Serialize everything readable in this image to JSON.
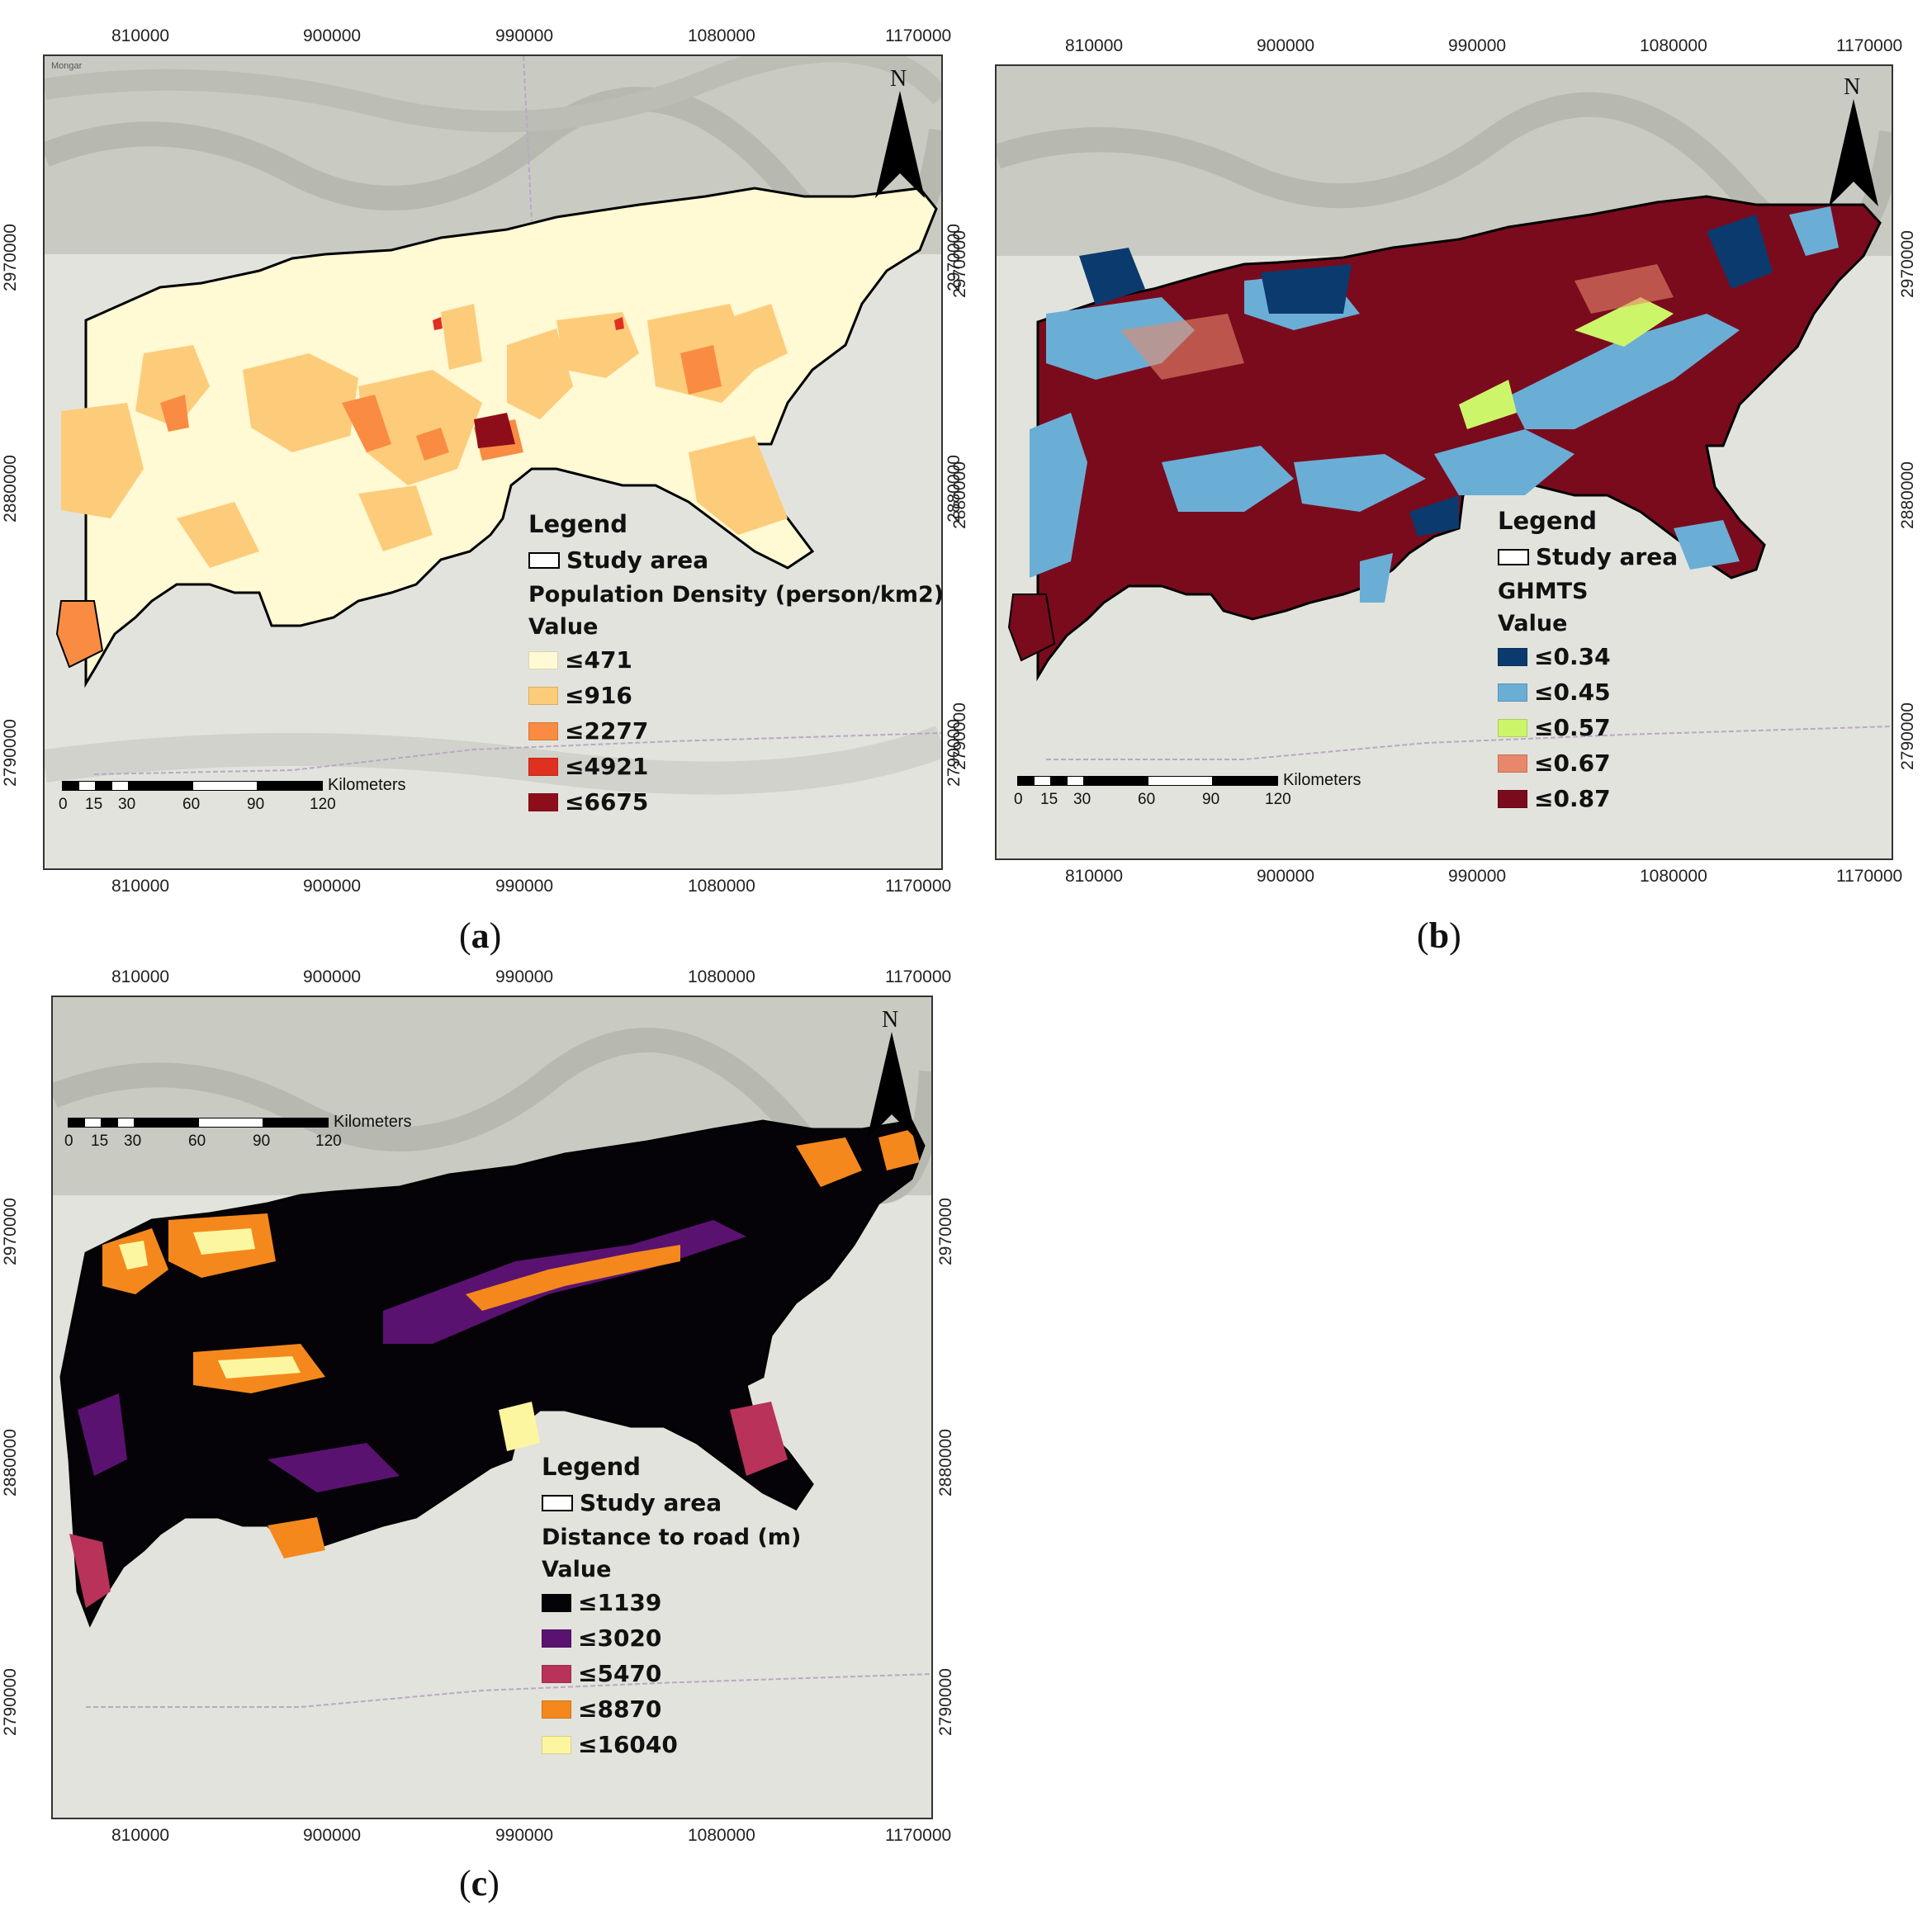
{
  "axis": {
    "x_ticks": [
      "810000",
      "900000",
      "990000",
      "1080000",
      "1170000"
    ],
    "y_ticks": [
      "2970000",
      "2880000",
      "2790000"
    ]
  },
  "scale": {
    "labels": [
      "0",
      "15",
      "30",
      "60",
      "90",
      "120"
    ],
    "unit": "Kilometers"
  },
  "north_label": "N",
  "panels": [
    {
      "id": "a",
      "caption_open": "(",
      "caption_letter": "a",
      "caption_close": ")",
      "legend": {
        "title": "Legend",
        "study_area": "Study area",
        "layer": "Population Density (person/km2)",
        "value_label": "Value",
        "classes": [
          {
            "label": "≤471",
            "color": "#fff9d4"
          },
          {
            "label": "≤916",
            "color": "#fdcc7a"
          },
          {
            "label": "≤2277",
            "color": "#f98c42"
          },
          {
            "label": "≤4921",
            "color": "#e03020"
          },
          {
            "label": "≤6675",
            "color": "#8e0d1a"
          }
        ]
      }
    },
    {
      "id": "b",
      "caption_open": "(",
      "caption_letter": "b",
      "caption_close": ")",
      "legend": {
        "title": "Legend",
        "study_area": "Study area",
        "layer": "GHMTS",
        "value_label": "Value",
        "classes": [
          {
            "label": "≤0.34",
            "color": "#0b3a6e"
          },
          {
            "label": "≤0.45",
            "color": "#6aaed6"
          },
          {
            "label": "≤0.57",
            "color": "#ccf56a"
          },
          {
            "label": "≤0.67",
            "color": "#e8876a"
          },
          {
            "label": "≤0.87",
            "color": "#7a0b1d"
          }
        ]
      }
    },
    {
      "id": "c",
      "caption_open": "(",
      "caption_letter": "c",
      "caption_close": ")",
      "legend": {
        "title": "Legend",
        "study_area": "Study area",
        "layer": "Distance to road (m)",
        "value_label": "Value",
        "classes": [
          {
            "label": "≤1139",
            "color": "#050308"
          },
          {
            "label": "≤3020",
            "color": "#5a1270"
          },
          {
            "label": "≤5470",
            "color": "#b8325a"
          },
          {
            "label": "≤8870",
            "color": "#f5881c"
          },
          {
            "label": "≤16040",
            "color": "#fdf6a0"
          }
        ]
      }
    }
  ]
}
